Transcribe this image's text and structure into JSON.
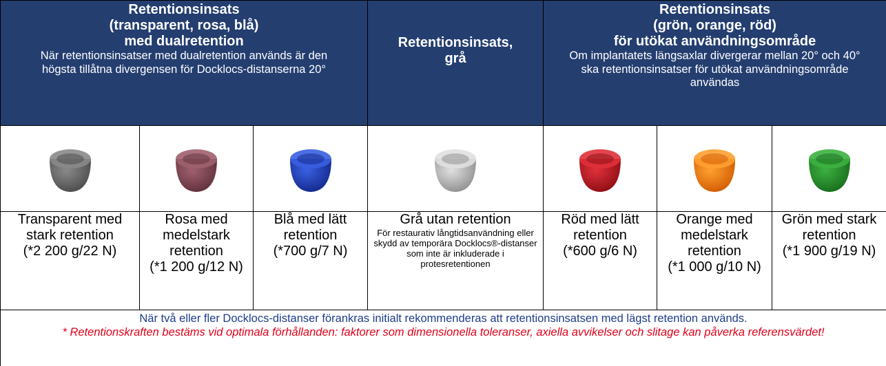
{
  "header": [
    {
      "title": [
        "Retentionsinsats",
        "(transparent, rosa, blå)",
        "med dualretention"
      ],
      "note": "När retentionsinsatser med dualretention används är den högsta tillåtna divergensen för Docklocs-distanserna 20°"
    },
    {
      "title": [
        "Retentionsinsats,",
        "grå"
      ]
    },
    {
      "title": [
        "Retentionsinsats",
        "(grön, orange, röd)",
        "för utökat användningsområde"
      ],
      "note": "Om implantatets längsaxlar divergerar mellan 20° och 40° ska retentionsinsatser för utökat användningsområde användas"
    }
  ],
  "items": [
    {
      "name": "Transparent med stark retention",
      "force": "(*2 200 g/22 N)"
    },
    {
      "name": "Rosa med medelstark retention",
      "force": "(*1 200 g/12 N)"
    },
    {
      "name": "Blå med lätt retention",
      "force": "(*700 g/7 N)"
    },
    {
      "name": "Grå utan retention",
      "description": "För restaurativ långtidsanvändning eller skydd av temporära Docklocs®-distanser som inte är inkluderade i protesretentionen"
    },
    {
      "name": "Röd med lätt retention",
      "force": "(*600 g/6 N)"
    },
    {
      "name": "Orange med medelstark retention",
      "force": "(*1 000 g/10 N)"
    },
    {
      "name": "Grön med stark retention",
      "force": "(*1 900 g/19 N)"
    }
  ],
  "footer": {
    "recommendation": "När två eller fler Docklocs-distanser förankras initialt rekommenderas att retentionsinsatsen med lägst retention används.",
    "disclaimer": "* Retentionskraften bestäms vid optimala förhållanden: faktorer som dimensionella toleranser, axiella avvikelser och slitage kan påverka referensvärdet!"
  }
}
